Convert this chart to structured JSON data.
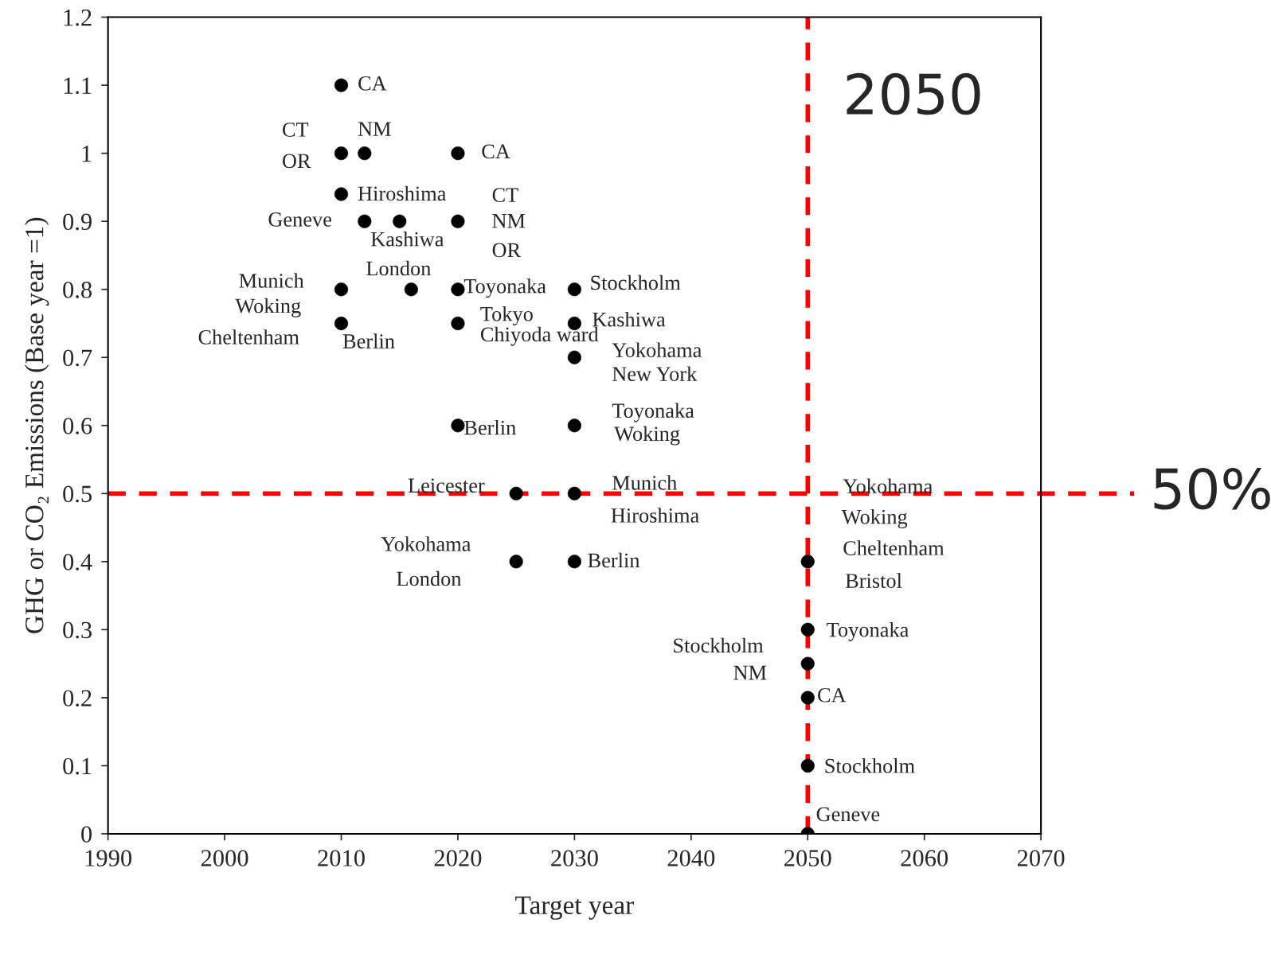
{
  "chart_data": {
    "type": "scatter",
    "xlabel": "Target year",
    "ylabel": "GHG or CO₂ Emissions (Base year =1)",
    "x": [
      2010,
      2010,
      2012,
      2020,
      2010,
      2012,
      2015,
      2020,
      2010,
      2016,
      2020,
      2030,
      2010,
      2020,
      2030,
      2030,
      2020,
      2030,
      2025,
      2030,
      2025,
      2030,
      2050,
      2050,
      2050,
      2050,
      2050,
      2050
    ],
    "values": [
      1.1,
      1.0,
      1.0,
      1.0,
      0.94,
      0.9,
      0.9,
      0.9,
      0.8,
      0.8,
      0.8,
      0.8,
      0.75,
      0.75,
      0.75,
      0.7,
      0.6,
      0.6,
      0.5,
      0.5,
      0.4,
      0.4,
      0.4,
      0.3,
      0.25,
      0.2,
      0.1,
      0.0
    ],
    "color": "#000000",
    "marker": "circle",
    "grid": false,
    "legend": false,
    "xlim": [
      1990,
      2070
    ],
    "xticks": [
      1990,
      2000,
      2010,
      2020,
      2030,
      2040,
      2050,
      2060,
      2070
    ],
    "ylim": [
      0,
      1.2
    ],
    "yticks": [
      0,
      0.1,
      0.2,
      0.3,
      0.4,
      0.5,
      0.6,
      0.7,
      0.8,
      0.9,
      1,
      1.1,
      1.2
    ],
    "ref_lines": [
      {
        "axis": "x",
        "value": 2050,
        "label": "2050",
        "color": "#ff0000",
        "line_style": "dashed"
      },
      {
        "axis": "y",
        "value": 0.5,
        "label": "50%",
        "color": "#ff0000",
        "line_style": "dashed"
      }
    ],
    "annotations": [
      "CA",
      "CT",
      "OR",
      "NM",
      "CA",
      "Hiroshima",
      "Geneve",
      "CT",
      "NM",
      "OR",
      "Kashiwa",
      "London",
      "Munich",
      "Woking",
      "Cheltenham",
      "Berlin",
      "Toyonaka",
      "Stockholm",
      "Tokyo",
      "Chiyoda ward",
      "Kashiwa",
      "Yokohama",
      "New York",
      "Berlin",
      "Toyonaka",
      "Woking",
      "Leicester",
      "Munich",
      "Hiroshima",
      "Yokohama",
      "London",
      "Berlin",
      "Yokohama",
      "Woking",
      "Cheltenham",
      "Bristol",
      "Toyonaka",
      "Stockholm",
      "NM",
      "CA",
      "Stockholm",
      "Geneve"
    ]
  }
}
